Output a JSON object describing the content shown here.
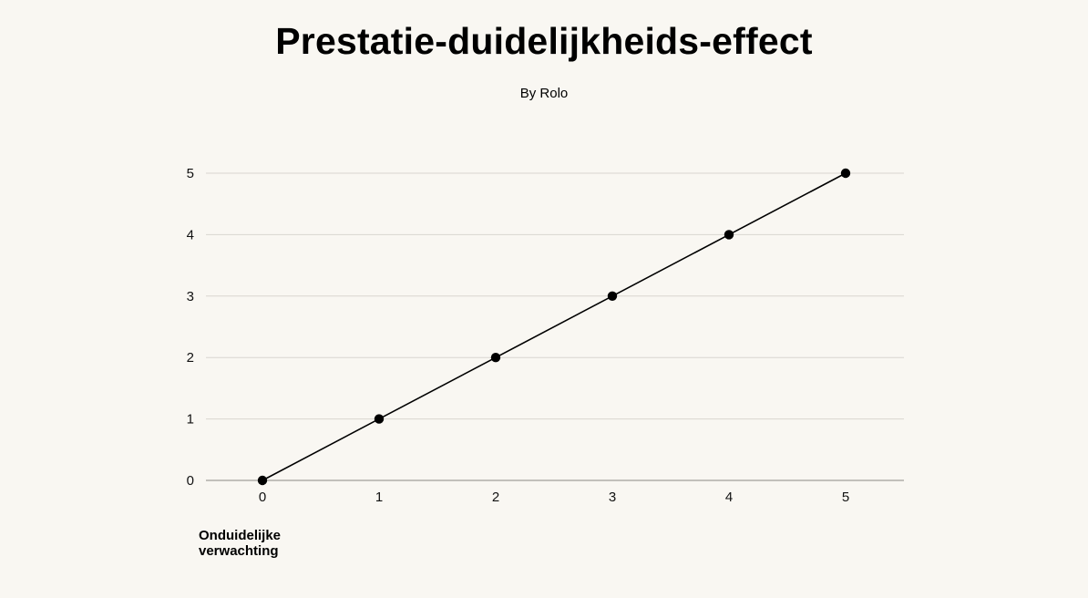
{
  "chart_data": {
    "type": "line",
    "title": "Prestatie-duidelijkheids-effect",
    "subtitle": "By Rolo",
    "xlabel": "Onduidelijke verwachting",
    "ylabel": "",
    "x": [
      0,
      1,
      2,
      3,
      4,
      5
    ],
    "series": [
      {
        "values": [
          0,
          1,
          2,
          3,
          4,
          5
        ]
      }
    ],
    "xticks": [
      "0",
      "1",
      "2",
      "3",
      "4",
      "5"
    ],
    "yticks": [
      "0",
      "1",
      "2",
      "3",
      "4",
      "5"
    ],
    "xlim": [
      0,
      5
    ],
    "ylim": [
      0,
      5
    ],
    "grid": "horizontal",
    "legend": "none",
    "colors": {
      "background": "#f9f7f2",
      "line": "#000000",
      "marker": "#000000",
      "grid": "#d9d6d0",
      "axis": "#8a8884"
    }
  }
}
